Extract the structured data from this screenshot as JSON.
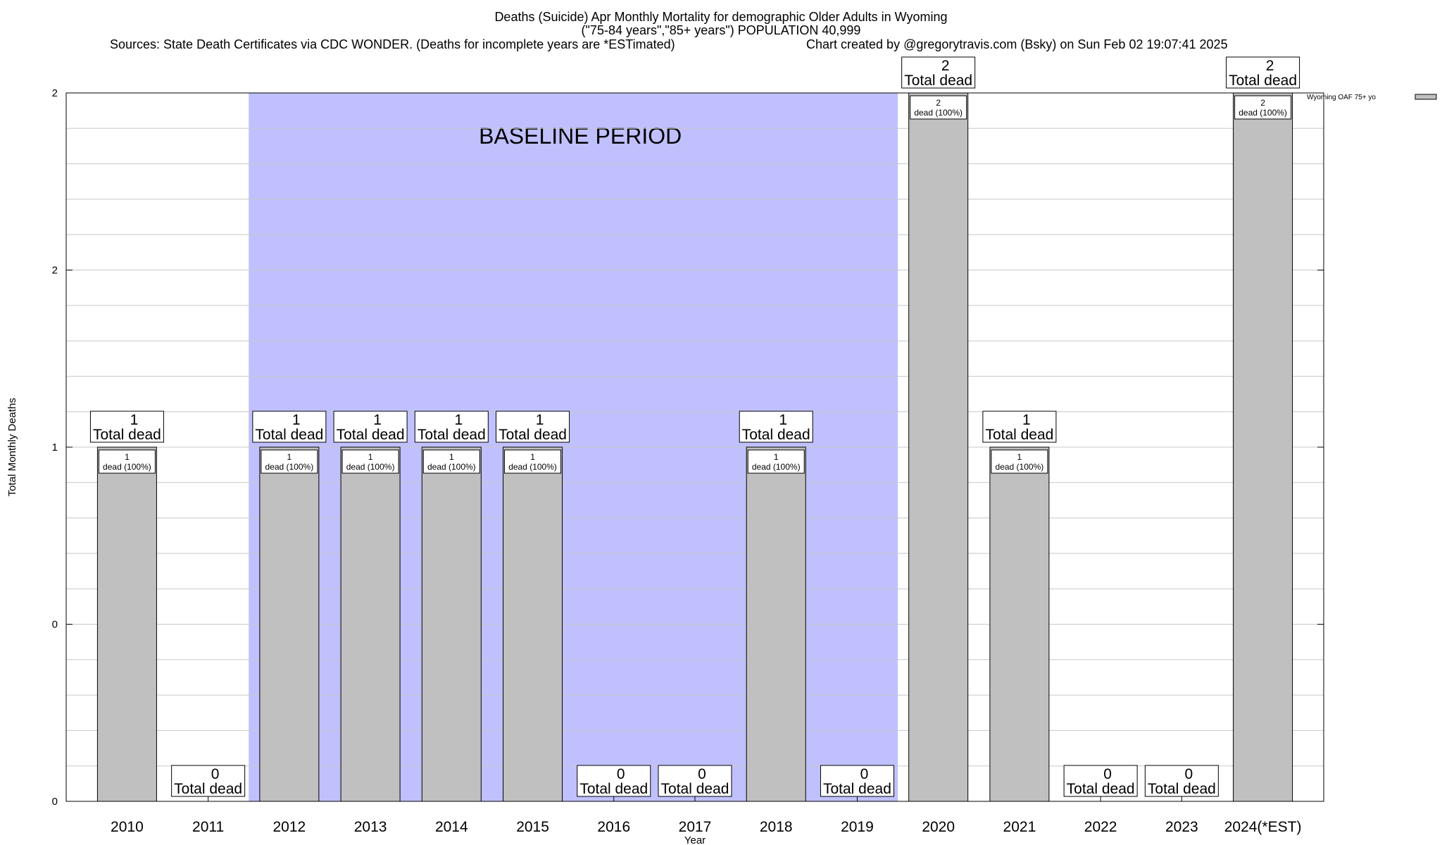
{
  "header": {
    "title_line1": "Deaths (Suicide) Apr Monthly Mortality for demographic Older Adults in Wyoming",
    "title_line2": "(\"75-84 years\",\"85+ years\") POPULATION 40,999",
    "source": "Sources: State Death Certificates via CDC WONDER. (Deaths for incomplete years are *ESTimated)",
    "credit": "Chart created by @gregorytravis.com (Bsky) on Sun Feb 02 19:07:41 2025"
  },
  "chart_data": {
    "type": "bar",
    "xlabel": "Year",
    "ylabel": "Total Monthly Deaths",
    "ylim": [
      0,
      2
    ],
    "y_tick_labels": [
      "0",
      "0",
      "1",
      "2",
      "2"
    ],
    "categories": [
      "2010",
      "2011",
      "2012",
      "2013",
      "2014",
      "2015",
      "2016",
      "2017",
      "2018",
      "2019",
      "2020",
      "2021",
      "2022",
      "2023",
      "2024(*EST)"
    ],
    "series": [
      {
        "name": "Wyoming OAF 75+ yo",
        "values": [
          1,
          0,
          1,
          1,
          1,
          1,
          0,
          0,
          1,
          0,
          2,
          1,
          0,
          0,
          2
        ]
      }
    ],
    "total_label": "Total dead",
    "inner_label": "dead (100%)",
    "baseline": {
      "label": "BASELINE PERIOD",
      "from": "2012",
      "to": "2019"
    },
    "bar_color": "#c0c0c0",
    "baseline_color": "#c0c0ff",
    "legend_position": "top-right",
    "grid": true
  }
}
